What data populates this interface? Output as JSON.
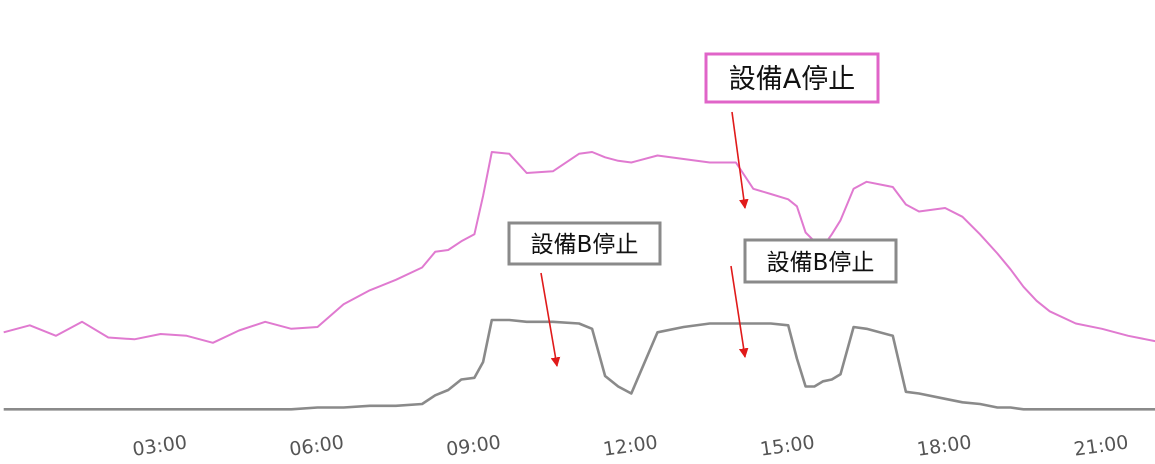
{
  "chart_data": {
    "type": "line",
    "title": "",
    "xlabel": "",
    "ylabel": "",
    "grid": false,
    "legend": "none",
    "x_ticks": [
      "03:00",
      "06:00",
      "09:00",
      "12:00",
      "15:00",
      "18:00",
      "21:00"
    ],
    "xlim": [
      "00:00",
      "23:00"
    ],
    "ylim": [
      0,
      100
    ],
    "series": [
      {
        "color": "#e07ad0",
        "x": [
          "00:00",
          "00:30",
          "01:00",
          "01:30",
          "02:00",
          "02:30",
          "03:00",
          "03:30",
          "04:00",
          "04:30",
          "05:00",
          "05:30",
          "06:00",
          "06:30",
          "07:00",
          "07:30",
          "08:00",
          "08:15",
          "08:30",
          "08:45",
          "09:00",
          "09:10",
          "09:20",
          "09:40",
          "10:00",
          "10:30",
          "11:00",
          "11:15",
          "11:30",
          "11:45",
          "12:00",
          "12:30",
          "13:00",
          "13:30",
          "14:00",
          "14:20",
          "14:40",
          "15:00",
          "15:10",
          "15:20",
          "15:30",
          "15:40",
          "15:50",
          "16:00",
          "16:15",
          "16:30",
          "17:00",
          "17:15",
          "17:30",
          "18:00",
          "18:20",
          "18:40",
          "19:00",
          "19:15",
          "19:30",
          "19:45",
          "20:00",
          "20:30",
          "21:00",
          "21:30",
          "22:00",
          "22:30",
          "23:00"
        ],
        "values": [
          22.5,
          24.5,
          21.5,
          25.5,
          21,
          20.5,
          22,
          21.5,
          19.5,
          23,
          25.5,
          23.5,
          24,
          30.5,
          34.5,
          37.5,
          41,
          45.5,
          46,
          48.5,
          50.5,
          61.5,
          74,
          73.5,
          68,
          68.5,
          73.5,
          74,
          72.5,
          71.5,
          71,
          73,
          72,
          71,
          71,
          63.5,
          62,
          60.5,
          58.5,
          51,
          48.5,
          47,
          50.5,
          54.5,
          63.5,
          65.5,
          64,
          59,
          57,
          58,
          55.5,
          50.5,
          45,
          40.5,
          35.5,
          31.5,
          28.5,
          25,
          23.5,
          21.5,
          20,
          18.5,
          18
        ]
      },
      {
        "color": "#8a8a8a",
        "x": [
          "00:00",
          "00:30",
          "01:00",
          "01:30",
          "02:00",
          "02:30",
          "03:00",
          "03:30",
          "04:00",
          "04:30",
          "05:00",
          "05:30",
          "06:00",
          "06:30",
          "07:00",
          "07:30",
          "08:00",
          "08:15",
          "08:30",
          "08:45",
          "09:00",
          "09:10",
          "09:20",
          "09:40",
          "10:00",
          "10:30",
          "11:00",
          "11:15",
          "11:30",
          "11:45",
          "12:00",
          "12:30",
          "13:00",
          "13:30",
          "14:00",
          "14:20",
          "14:40",
          "15:00",
          "15:10",
          "15:20",
          "15:30",
          "15:40",
          "15:50",
          "16:00",
          "16:15",
          "16:30",
          "17:00",
          "17:15",
          "17:30",
          "18:00",
          "18:20",
          "18:40",
          "19:00",
          "19:15",
          "19:30",
          "19:45",
          "20:00",
          "20:30",
          "21:00",
          "21:30",
          "22:00",
          "22:30",
          "23:00"
        ],
        "values": [
          0.5,
          0.5,
          0.5,
          0.5,
          0.5,
          0.5,
          0.5,
          0.5,
          0.5,
          0.5,
          0.5,
          0.5,
          1,
          1,
          1.5,
          1.5,
          2,
          4.5,
          6,
          9,
          9.5,
          14,
          26,
          26,
          25.5,
          25.5,
          25,
          23.5,
          10,
          7,
          5,
          22.5,
          24,
          25,
          25,
          25,
          25,
          24.5,
          15,
          7,
          7,
          8.5,
          9,
          10.5,
          24,
          23.5,
          21.5,
          5.5,
          5,
          3.5,
          2.5,
          2,
          1,
          1,
          0.5,
          0.5,
          0.5,
          0.5,
          0.5,
          0.5,
          0.5,
          0.5,
          0.5
        ]
      }
    ],
    "annotations": [
      {
        "text": "設備A停止",
        "color": "#e064c8",
        "points_to": {
          "series": 0,
          "x": "15:25"
        }
      },
      {
        "text": "設備B停止",
        "color": "#8a8a8a",
        "points_to": {
          "series": 1,
          "x": "11:45"
        }
      },
      {
        "text": "設備B停止",
        "color": "#8a8a8a",
        "points_to": {
          "series": 1,
          "x": "15:10"
        }
      }
    ]
  }
}
